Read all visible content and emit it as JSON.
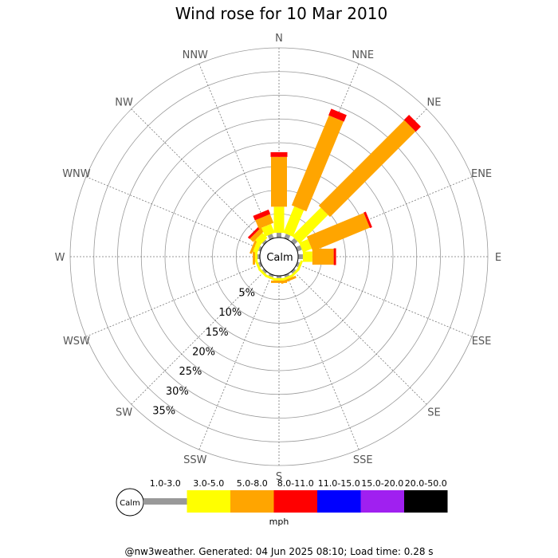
{
  "chart_data": {
    "type": "wind-rose",
    "title": "Wind rose for 10 Mar 2010",
    "directions": [
      "N",
      "NNE",
      "NE",
      "ENE",
      "E",
      "ESE",
      "SE",
      "SSE",
      "S",
      "SSW",
      "SW",
      "WSW",
      "W",
      "WNW",
      "NW",
      "NNW"
    ],
    "radial_ticks": [
      "5%",
      "10%",
      "15%",
      "20%",
      "25%",
      "30%",
      "35%"
    ],
    "radial_max_pct": 40,
    "calm_label": "Calm",
    "speed_bins": [
      {
        "label": "1.0-3.0",
        "color": "#999999"
      },
      {
        "label": "3.0-5.0",
        "color": "#ffff00"
      },
      {
        "label": "5.0-8.0",
        "color": "#ffa500"
      },
      {
        "label": "8.0-11.0",
        "color": "#ff0000"
      },
      {
        "label": "11.0-15.0",
        "color": "#0000ff"
      },
      {
        "label": "15.0-20.0",
        "color": "#a020f0"
      },
      {
        "label": "20.0-50.0",
        "color": "#000000"
      }
    ],
    "units": "mph",
    "series": [
      {
        "direction": "N",
        "segments": [
          1.0,
          5.5,
          10.5,
          1.0,
          0,
          0,
          0
        ]
      },
      {
        "direction": "NNE",
        "segments": [
          1.0,
          6.0,
          20.5,
          1.5,
          0,
          0,
          0
        ]
      },
      {
        "direction": "NE",
        "segments": [
          1.0,
          8.5,
          25.5,
          1.5,
          0,
          0,
          0
        ]
      },
      {
        "direction": "ENE",
        "segments": [
          1.0,
          2.0,
          13.0,
          0.5,
          0,
          0,
          0
        ]
      },
      {
        "direction": "E",
        "segments": [
          1.0,
          2.0,
          4.5,
          0.5,
          0,
          0,
          0
        ]
      },
      {
        "direction": "ESE",
        "segments": [
          0.5,
          0.5,
          0,
          0,
          0,
          0,
          0
        ]
      },
      {
        "direction": "SE",
        "segments": [
          0.5,
          0.5,
          0,
          0,
          0,
          0,
          0
        ]
      },
      {
        "direction": "SSE",
        "segments": [
          0.5,
          0.5,
          0.5,
          0,
          0,
          0,
          0
        ]
      },
      {
        "direction": "S",
        "segments": [
          0.5,
          0.5,
          0.5,
          0,
          0,
          0,
          0
        ]
      },
      {
        "direction": "SSW",
        "segments": [
          0.5,
          0.5,
          0,
          0,
          0,
          0,
          0
        ]
      },
      {
        "direction": "SW",
        "segments": [
          0.5,
          0.5,
          0,
          0,
          0,
          0,
          0
        ]
      },
      {
        "direction": "WSW",
        "segments": [
          0.5,
          0.5,
          0,
          0,
          0,
          0,
          0
        ]
      },
      {
        "direction": "W",
        "segments": [
          0.5,
          0.5,
          0.5,
          0,
          0,
          0,
          0
        ]
      },
      {
        "direction": "WNW",
        "segments": [
          0.5,
          1.0,
          0.5,
          0,
          0,
          0,
          0
        ]
      },
      {
        "direction": "NW",
        "segments": [
          0.5,
          1.5,
          1.0,
          0.5,
          0,
          0,
          0
        ]
      },
      {
        "direction": "NNW",
        "segments": [
          1.0,
          2.0,
          2.0,
          1.0,
          0,
          0,
          0
        ]
      }
    ]
  },
  "footer": "@nw3weather. Generated: 04 Jun 2025 08:10; Load time: 0.28 s"
}
